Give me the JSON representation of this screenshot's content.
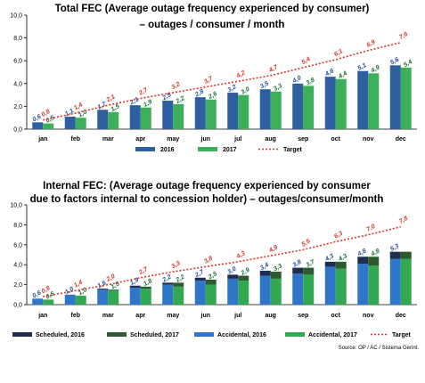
{
  "colors": {
    "y2016": "#2E5FA0",
    "y2017": "#3DAE5A",
    "target": "#D7362B",
    "scheduled2016": "#1F2E4F",
    "scheduled2017": "#2C5A2F",
    "accidental2016": "#2F76C8",
    "accidental2017": "#33A852",
    "label2016": "#1F4E9C",
    "label2017": "#1A6E35"
  },
  "source": "Source: OP / AC / Sistema Gerint.",
  "chart_data": [
    {
      "type": "bar",
      "title_lines": [
        "Total FEC (Average outage frequency experienced by consumer)",
        "– outages / consumer / month"
      ],
      "categories": [
        "jan",
        "feb",
        "mar",
        "apr",
        "may",
        "jun",
        "jul",
        "aug",
        "sep",
        "oct",
        "nov",
        "dec"
      ],
      "ylim": [
        0,
        10
      ],
      "yticks": [
        "0,0",
        "2,0",
        "4,0",
        "6,0",
        "8,0",
        "10,0"
      ],
      "grid": false,
      "legend_position": "bottom",
      "series": [
        {
          "name": "2016",
          "type": "bar",
          "values": [
            0.6,
            1.1,
            1.7,
            2.1,
            2.5,
            2.8,
            3.2,
            3.5,
            4.0,
            4.6,
            5.1,
            5.6
          ],
          "labels": [
            "0,6",
            "1,1",
            "1,7",
            "2,1",
            "2,5",
            "2,8",
            "3,2",
            "3,5",
            "4,0",
            "4,6",
            "5,1",
            "5,6"
          ]
        },
        {
          "name": "2017",
          "type": "bar",
          "values": [
            0.5,
            1.0,
            1.5,
            1.9,
            2.2,
            2.6,
            3.0,
            3.3,
            3.8,
            4.4,
            4.9,
            5.4
          ],
          "labels": [
            "0,5",
            "1,0",
            "1,5",
            "1,9",
            "2,2",
            "2,6",
            "3,0",
            "3,3",
            "3,8",
            "4,4",
            "4,9",
            "5,4"
          ]
        },
        {
          "name": "Target",
          "type": "line",
          "values": [
            0.8,
            1.4,
            2.1,
            2.7,
            3.2,
            3.7,
            4.2,
            4.7,
            5.4,
            6.1,
            6.9,
            7.6
          ],
          "labels": [
            "0,8",
            "1,4",
            "2,1",
            "2,7",
            "3,2",
            "3,7",
            "4,2",
            "4,7",
            "5,4",
            "6,1",
            "6,9",
            "7,6"
          ]
        }
      ],
      "legend": [
        "2016",
        "2017",
        "Target"
      ]
    },
    {
      "type": "bar",
      "title_lines": [
        "Internal FEC: (Average outage frequency experienced by consumer",
        "due to factors internal to concession holder) – outages/consumer/month"
      ],
      "categories": [
        "jan",
        "feb",
        "mar",
        "apr",
        "may",
        "jun",
        "jul",
        "aug",
        "sep",
        "oct",
        "nov",
        "dec"
      ],
      "ylim": [
        0,
        10
      ],
      "yticks": [
        "0,0",
        "2,0",
        "4,0",
        "6,0",
        "8,0",
        "10,0"
      ],
      "grid": false,
      "legend_position": "bottom",
      "stacked": true,
      "series": [
        {
          "name": "Accidental, 2016",
          "stack": "2016",
          "values": [
            0.6,
            1.0,
            1.5,
            1.7,
            2.0,
            2.4,
            2.6,
            2.9,
            3.1,
            3.8,
            4.1,
            4.6
          ]
        },
        {
          "name": "Scheduled, 2016",
          "stack": "2016",
          "values": [
            0.0,
            0.0,
            0.1,
            0.2,
            0.2,
            0.3,
            0.4,
            0.5,
            0.6,
            0.5,
            0.7,
            0.7
          ]
        },
        {
          "name": "Accidental, 2017",
          "stack": "2017",
          "values": [
            0.5,
            0.9,
            1.4,
            1.6,
            1.8,
            2.0,
            2.4,
            2.6,
            3.0,
            3.6,
            3.9,
            4.6
          ]
        },
        {
          "name": "Scheduled, 2017",
          "stack": "2017",
          "values": [
            0.0,
            0.0,
            0.1,
            0.2,
            0.4,
            0.5,
            0.5,
            0.7,
            0.7,
            0.7,
            0.9,
            0.7
          ]
        },
        {
          "name": "Target",
          "type": "line",
          "values": [
            0.8,
            1.4,
            2.0,
            2.7,
            3.3,
            3.8,
            4.3,
            4.9,
            5.5,
            6.3,
            7.0,
            7.8
          ],
          "labels": [
            "0,8",
            "1,4",
            "2,0",
            "2,7",
            "3,3",
            "3,8",
            "4,3",
            "4,9",
            "5,5",
            "6,3",
            "7,0",
            "7,8"
          ]
        }
      ],
      "total_labels_2016": [
        "0,6",
        "1,0",
        "1,6",
        "1,9",
        "2,2",
        "2,7",
        "3,0",
        "3,4",
        "3,8",
        "4,3",
        "4,8",
        "5,3"
      ],
      "total_labels_2017": [
        "0,5",
        "1,0",
        "1,5",
        "1,8",
        "2,2",
        "2,5",
        "2,9",
        "3,3",
        "3,7",
        "4,3",
        "4,8",
        ""
      ],
      "legend": [
        "Scheduled, 2016",
        "Scheduled, 2017",
        "Accidental, 2016",
        "Accidental, 2017",
        "Target"
      ]
    }
  ]
}
